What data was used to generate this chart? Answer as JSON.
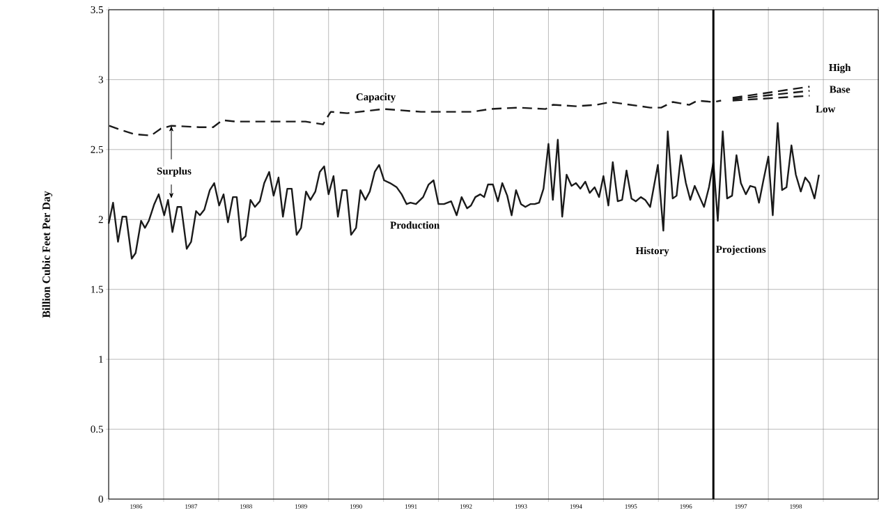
{
  "chart_data": {
    "type": "line",
    "ylabel": "Billion Cubic Feet Per Day",
    "xlim": [
      1986,
      2000
    ],
    "ylim": [
      0,
      3.5
    ],
    "xticks": [
      {
        "value": 1986,
        "label": null
      },
      {
        "value": 1987,
        "label": null
      },
      {
        "value": 1988,
        "label": null
      },
      {
        "value": 1989,
        "label": null
      },
      {
        "value": 1990,
        "label": null
      },
      {
        "value": 1991,
        "label": null
      },
      {
        "value": 1992,
        "label": null
      },
      {
        "value": 1993,
        "label": null
      },
      {
        "value": 1994,
        "label": null
      },
      {
        "value": 1995,
        "label": null
      },
      {
        "value": 1996,
        "label": null
      },
      {
        "value": 1997,
        "label": null
      },
      {
        "value": 1998,
        "label": null
      },
      {
        "value": 1999,
        "label": null
      },
      {
        "value": 2000,
        "label": null
      },
      {
        "value": 1986.5,
        "label": "1986"
      },
      {
        "value": 1987.5,
        "label": "1987"
      },
      {
        "value": 1988.5,
        "label": "1988"
      },
      {
        "value": 1989.5,
        "label": "1989"
      },
      {
        "value": 1990.5,
        "label": "1990"
      },
      {
        "value": 1991.5,
        "label": "1991"
      },
      {
        "value": 1992.5,
        "label": "1992"
      },
      {
        "value": 1993.5,
        "label": "1993"
      },
      {
        "value": 1994.5,
        "label": "1994"
      },
      {
        "value": 1995.5,
        "label": "1995"
      },
      {
        "value": 1996.5,
        "label": "1996"
      },
      {
        "value": 1997.5,
        "label": "1997"
      },
      {
        "value": 1998.5,
        "label": "1998"
      }
    ],
    "yticks": [
      0,
      0.5,
      1,
      1.5,
      2,
      2.5,
      3,
      3.5
    ],
    "grid": true,
    "ref_lines": [
      {
        "axis": "x",
        "value": 1997,
        "label": "Projections",
        "color": "#000000"
      }
    ],
    "annotations": [
      {
        "text": "Surplus",
        "x": 1987.14,
        "y": 2.67
      },
      "History"
    ],
    "series": [
      {
        "name": "Capacity",
        "color": "#1a1a1a",
        "line_style": "dashed",
        "x": [
          1986.01,
          1986.22,
          1986.47,
          1986.77,
          1986.95,
          1987.14,
          1987.65,
          1987.9,
          1988.07,
          1988.32,
          1988.99,
          1989.58,
          1989.9,
          1989.96,
          1990.04,
          1990.34,
          1991.01,
          1991.68,
          1992.61,
          1992.94,
          1993.45,
          1993.95,
          1994.08,
          1994.5,
          1994.88,
          1995.13,
          1995.85,
          1996.05,
          1996.26,
          1996.56,
          1996.71,
          1997.0,
          1997.14
        ],
        "values": [
          2.67,
          2.64,
          2.61,
          2.6,
          2.65,
          2.67,
          2.66,
          2.66,
          2.71,
          2.7,
          2.7,
          2.7,
          2.68,
          2.72,
          2.77,
          2.76,
          2.79,
          2.77,
          2.77,
          2.79,
          2.8,
          2.79,
          2.82,
          2.81,
          2.82,
          2.84,
          2.8,
          2.8,
          2.84,
          2.82,
          2.85,
          2.84,
          2.85
        ]
      },
      {
        "name": "Production",
        "color": "#1a1a1a",
        "line_style": "solid",
        "x": [
          1986.0,
          1986.08,
          1986.17,
          1986.25,
          1986.32,
          1986.42,
          1986.49,
          1986.59,
          1986.66,
          1986.73,
          1986.83,
          1986.91,
          1987.01,
          1987.08,
          1987.16,
          1987.25,
          1987.32,
          1987.42,
          1987.5,
          1987.59,
          1987.66,
          1987.74,
          1987.84,
          1987.92,
          1988.01,
          1988.09,
          1988.17,
          1988.26,
          1988.33,
          1988.41,
          1988.49,
          1988.58,
          1988.66,
          1988.75,
          1988.83,
          1988.92,
          1989.0,
          1989.09,
          1989.17,
          1989.25,
          1989.33,
          1989.42,
          1989.5,
          1989.59,
          1989.67,
          1989.76,
          1989.84,
          1989.92,
          1990.0,
          1990.09,
          1990.17,
          1990.25,
          1990.33,
          1990.41,
          1990.5,
          1990.58,
          1990.67,
          1990.75,
          1990.84,
          1990.92,
          1991.01,
          1991.12,
          1991.24,
          1991.33,
          1991.42,
          1991.49,
          1991.59,
          1991.72,
          1991.82,
          1991.91,
          1992.0,
          1992.1,
          1992.23,
          1992.33,
          1992.42,
          1992.52,
          1992.59,
          1992.67,
          1992.76,
          1992.83,
          1992.9,
          1992.99,
          1993.08,
          1993.16,
          1993.25,
          1993.33,
          1993.41,
          1993.5,
          1993.58,
          1993.67,
          1993.75,
          1993.83,
          1993.91,
          1994.0,
          1994.08,
          1994.17,
          1994.25,
          1994.33,
          1994.42,
          1994.5,
          1994.58,
          1994.67,
          1994.75,
          1994.84,
          1994.92,
          1995.0,
          1995.09,
          1995.17,
          1995.26,
          1995.34,
          1995.42,
          1995.51,
          1995.59,
          1995.68,
          1995.76,
          1995.85,
          1995.99,
          1996.09,
          1996.17,
          1996.26,
          1996.33,
          1996.41,
          1996.5,
          1996.58,
          1996.66,
          1996.75,
          1996.83,
          1996.92,
          1997.0,
          1997.08,
          1997.17,
          1997.25,
          1997.34,
          1997.42,
          1997.5,
          1997.59,
          1997.67,
          1997.76,
          1997.83,
          1997.91,
          1998.0,
          1998.08,
          1998.17,
          1998.25,
          1998.33,
          1998.42,
          1998.5,
          1998.59,
          1998.67,
          1998.75,
          1998.84,
          1998.92
        ],
        "values": [
          1.97,
          2.12,
          1.84,
          2.02,
          2.02,
          1.72,
          1.76,
          1.99,
          1.94,
          1.99,
          2.11,
          2.18,
          2.03,
          2.14,
          1.91,
          2.09,
          2.09,
          1.79,
          1.84,
          2.06,
          2.03,
          2.07,
          2.21,
          2.26,
          2.1,
          2.18,
          1.98,
          2.16,
          2.16,
          1.85,
          1.88,
          2.14,
          2.09,
          2.13,
          2.26,
          2.34,
          2.17,
          2.3,
          2.02,
          2.22,
          2.22,
          1.89,
          1.94,
          2.2,
          2.14,
          2.2,
          2.34,
          2.38,
          2.18,
          2.31,
          2.02,
          2.21,
          2.21,
          1.89,
          1.94,
          2.21,
          2.14,
          2.2,
          2.34,
          2.39,
          2.28,
          2.26,
          2.23,
          2.18,
          2.11,
          2.12,
          2.11,
          2.16,
          2.25,
          2.28,
          2.11,
          2.11,
          2.13,
          2.03,
          2.16,
          2.08,
          2.1,
          2.16,
          2.18,
          2.16,
          2.25,
          2.25,
          2.13,
          2.26,
          2.17,
          2.03,
          2.21,
          2.11,
          2.09,
          2.11,
          2.11,
          2.12,
          2.22,
          2.54,
          2.14,
          2.57,
          2.02,
          2.32,
          2.24,
          2.26,
          2.22,
          2.27,
          2.19,
          2.23,
          2.16,
          2.31,
          2.1,
          2.41,
          2.13,
          2.14,
          2.35,
          2.15,
          2.13,
          2.16,
          2.14,
          2.09,
          2.39,
          1.92,
          2.63,
          2.15,
          2.17,
          2.46,
          2.26,
          2.14,
          2.24,
          2.16,
          2.09,
          2.23,
          2.41,
          1.99,
          2.63,
          2.15,
          2.17,
          2.46,
          2.26,
          2.18,
          2.24,
          2.23,
          2.12,
          2.28,
          2.45,
          2.03,
          2.69,
          2.21,
          2.23,
          2.53,
          2.32,
          2.2,
          2.3,
          2.26,
          2.15,
          2.32
        ]
      },
      {
        "name": "High",
        "color": "#1a1a1a",
        "line_style": "dashed",
        "x": [
          1997.35,
          1998.75
        ],
        "values": [
          2.87,
          2.95
        ]
      },
      {
        "name": "Base",
        "color": "#1a1a1a",
        "line_style": "dashed",
        "x": [
          1997.35,
          1998.75
        ],
        "values": [
          2.86,
          2.92
        ]
      },
      {
        "name": "Low",
        "color": "#1a1a1a",
        "line_style": "dashed",
        "x": [
          1997.35,
          1998.75
        ],
        "values": [
          2.85,
          2.885
        ]
      }
    ]
  }
}
